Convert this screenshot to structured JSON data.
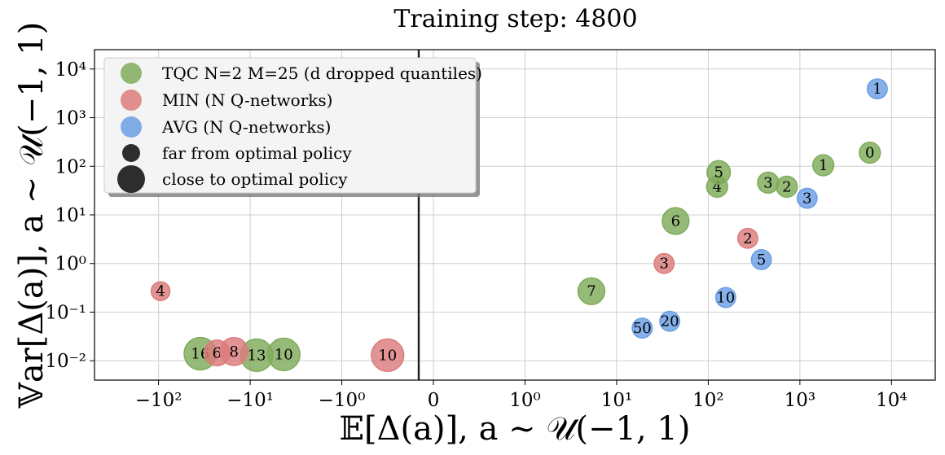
{
  "chart_data": {
    "type": "scatter",
    "title": "Training step: 4800",
    "xlabel": "𝔼[Δ(a)],    a ∼ 𝒰(−1, 1)",
    "ylabel": "𝕍ar[Δ(a)],   a ∼ 𝒰(−1, 1)",
    "xscale": "symlog",
    "yscale": "log",
    "xlim": [
      -500,
      30000
    ],
    "ylim": [
      0.004,
      25000
    ],
    "grid": true,
    "legend_position": "top-left",
    "xticks": [
      {
        "value": -100,
        "label": "−10²"
      },
      {
        "value": -10,
        "label": "−10¹"
      },
      {
        "value": -1,
        "label": "−10⁰"
      },
      {
        "value": 0,
        "label": "0"
      },
      {
        "value": 1,
        "label": "10⁰"
      },
      {
        "value": 10,
        "label": "10¹"
      },
      {
        "value": 100,
        "label": "10²"
      },
      {
        "value": 1000,
        "label": "10³"
      },
      {
        "value": 10000,
        "label": "10⁴"
      }
    ],
    "yticks": [
      {
        "value": 0.01,
        "label": "10⁻²"
      },
      {
        "value": 0.1,
        "label": "10⁻¹"
      },
      {
        "value": 1,
        "label": "10⁰"
      },
      {
        "value": 10,
        "label": "10¹"
      },
      {
        "value": 100,
        "label": "10²"
      },
      {
        "value": 1000,
        "label": "10³"
      },
      {
        "value": 10000,
        "label": "10⁴"
      }
    ],
    "legend": [
      {
        "label": "TQC N=2 M=25 (d dropped quantiles)",
        "color": "#7fab5a",
        "kind": "series"
      },
      {
        "label": "MIN (N Q-networks)",
        "color": "#dc7b7b",
        "kind": "series"
      },
      {
        "label": "AVG (N Q-networks)",
        "color": "#6a9fe4",
        "kind": "series"
      },
      {
        "label": "far from optimal policy",
        "color": "#222222",
        "kind": "size-small"
      },
      {
        "label": "close to optimal policy",
        "color": "#222222",
        "kind": "size-large"
      }
    ],
    "series": [
      {
        "name": "TQC N=2 M=25 (d dropped quantiles)",
        "color": "#7fab5a",
        "points": [
          {
            "label": "0",
            "x": 5800,
            "y": 190,
            "size": 0.35
          },
          {
            "label": "1",
            "x": 1800,
            "y": 105,
            "size": 0.35
          },
          {
            "label": "2",
            "x": 720,
            "y": 38,
            "size": 0.35
          },
          {
            "label": "3",
            "x": 450,
            "y": 46,
            "size": 0.35
          },
          {
            "label": "4",
            "x": 125,
            "y": 38,
            "size": 0.35
          },
          {
            "label": "5",
            "x": 130,
            "y": 75,
            "size": 0.45
          },
          {
            "label": "6",
            "x": 44,
            "y": 7.5,
            "size": 0.6
          },
          {
            "label": "7",
            "x": 5.3,
            "y": 0.27,
            "size": 0.6
          },
          {
            "label": "16",
            "x": -35,
            "y": 0.014,
            "size": 0.85
          },
          {
            "label": "13",
            "x": -8.5,
            "y": 0.013,
            "size": 0.85
          },
          {
            "label": "10",
            "x": -4.3,
            "y": 0.0135,
            "size": 0.85
          }
        ]
      },
      {
        "name": "MIN (N Q-networks)",
        "color": "#dc7b7b",
        "points": [
          {
            "label": "2",
            "x": 270,
            "y": 3.3,
            "size": 0.3
          },
          {
            "label": "3",
            "x": 33,
            "y": 1.0,
            "size": 0.3
          },
          {
            "label": "4",
            "x": -95,
            "y": 0.27,
            "size": 0.25
          },
          {
            "label": "6",
            "x": -23,
            "y": 0.0145,
            "size": 0.55
          },
          {
            "label": "8",
            "x": -15,
            "y": 0.0155,
            "size": 0.65
          },
          {
            "label": "10",
            "x": -0.5,
            "y": 0.013,
            "size": 0.85
          }
        ]
      },
      {
        "name": "AVG (N Q-networks)",
        "color": "#6a9fe4",
        "points": [
          {
            "label": "1",
            "x": 7000,
            "y": 3900,
            "size": 0.3
          },
          {
            "label": "3",
            "x": 1200,
            "y": 22,
            "size": 0.3
          },
          {
            "label": "5",
            "x": 380,
            "y": 1.2,
            "size": 0.3
          },
          {
            "label": "10",
            "x": 155,
            "y": 0.2,
            "size": 0.3
          },
          {
            "label": "20",
            "x": 38,
            "y": 0.065,
            "size": 0.3
          },
          {
            "label": "50",
            "x": 19,
            "y": 0.047,
            "size": 0.3
          }
        ]
      }
    ]
  }
}
